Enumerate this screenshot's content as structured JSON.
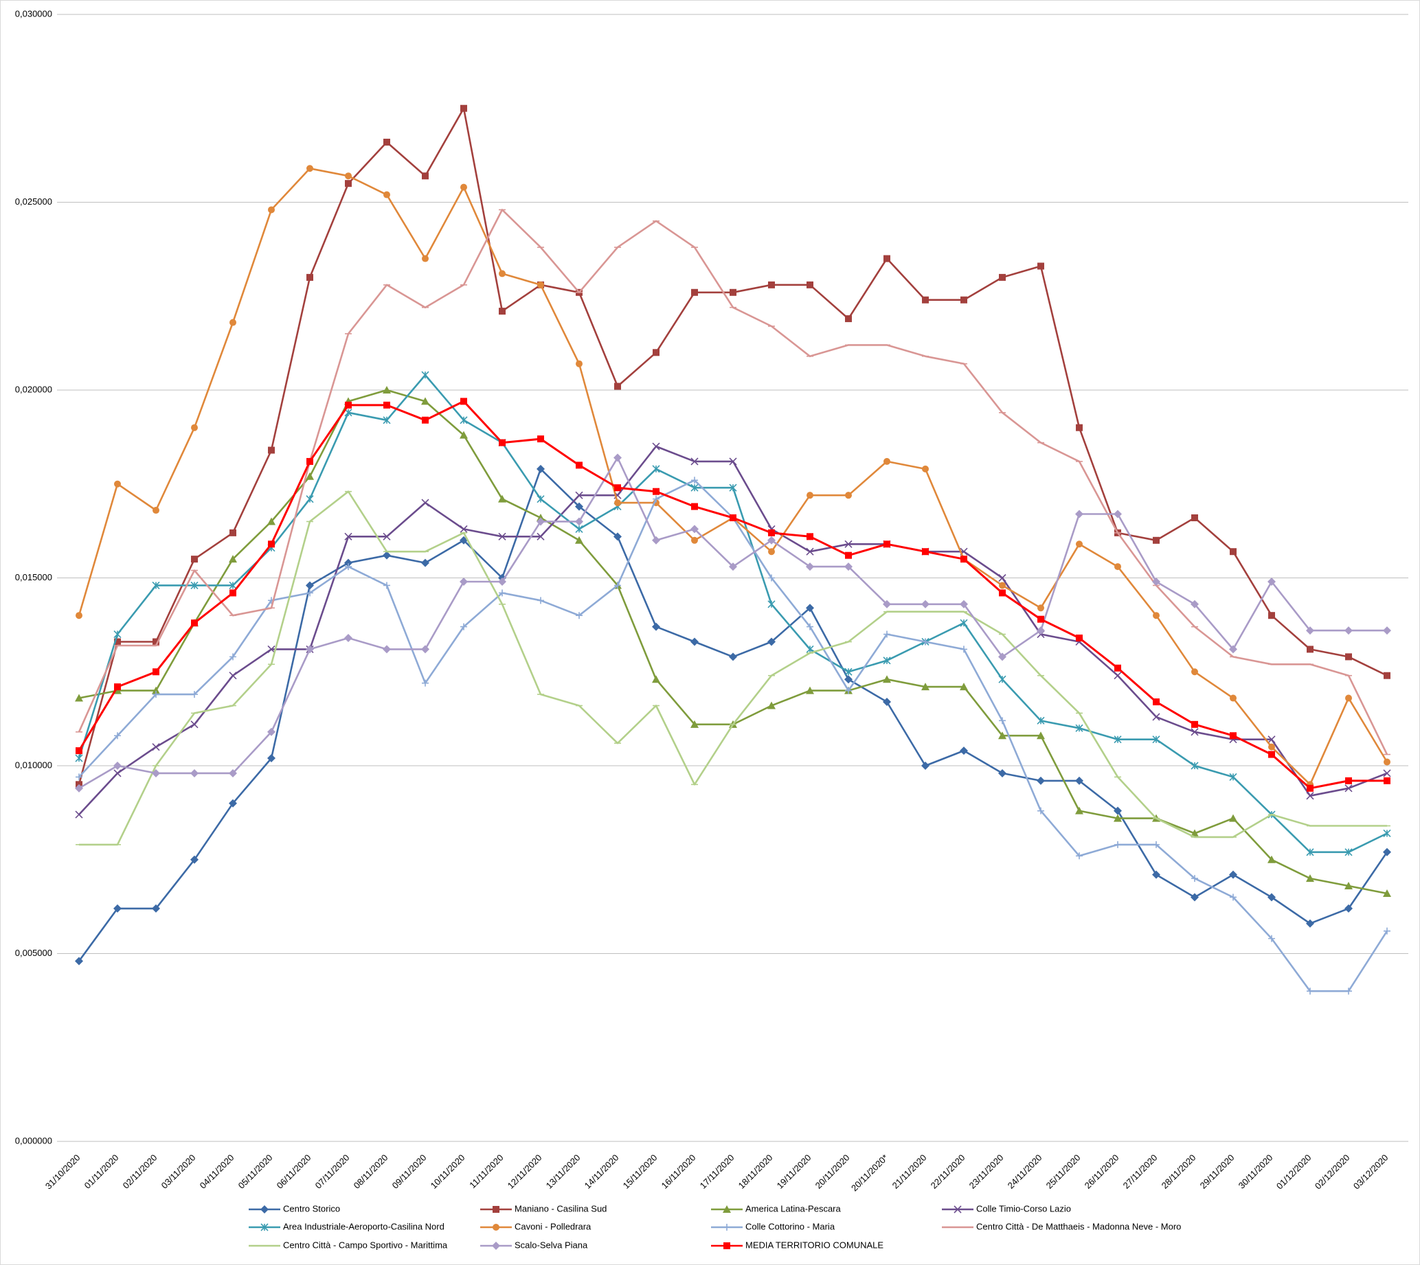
{
  "chart_data": {
    "type": "line",
    "categories": [
      "31/10/2020",
      "01/11/2020",
      "02/11/2020",
      "03/11/2020",
      "04/11/2020",
      "05/11/2020",
      "06/11/2020",
      "07/11/2020",
      "08/11/2020",
      "09/11/2020",
      "10/11/2020",
      "11/11/2020",
      "12/11/2020",
      "13/11/2020",
      "14/11/2020",
      "15/11/2020",
      "16/11/2020",
      "17/11/2020",
      "18/11/2020",
      "19/11/2020",
      "20/11/2020",
      "20/11/2020*",
      "21/11/2020",
      "22/11/2020",
      "23/11/2020",
      "24/11/2020",
      "25/11/2020",
      "26/11/2020",
      "27/11/2020",
      "28/11/2020",
      "29/11/2020",
      "30/11/2020",
      "01/12/2020",
      "02/12/2020",
      "03/12/2020"
    ],
    "ylim": [
      0,
      0.03
    ],
    "yticks": [
      {
        "value": 0,
        "label": "0,000000"
      },
      {
        "value": 0.005,
        "label": "0,005000"
      },
      {
        "value": 0.01,
        "label": "0,010000"
      },
      {
        "value": 0.015,
        "label": "0,015000"
      },
      {
        "value": 0.02,
        "label": "0,020000"
      },
      {
        "value": 0.025,
        "label": "0,025000"
      },
      {
        "value": 0.03,
        "label": "0,030000"
      }
    ],
    "grid": true,
    "legend": "bottom",
    "series": [
      {
        "name": "Centro Storico",
        "color": "#3c6aa6",
        "marker": "diamond",
        "values": [
          0.0048,
          0.0062,
          0.0062,
          0.0075,
          0.009,
          0.0102,
          0.0148,
          0.0154,
          0.0156,
          0.0154,
          0.016,
          0.015,
          0.0179,
          0.0169,
          0.0161,
          0.0137,
          0.0133,
          0.0129,
          0.0133,
          0.0142,
          0.0123,
          0.0117,
          0.01,
          0.0104,
          0.0098,
          0.0096,
          0.0096,
          0.0088,
          0.0071,
          0.0065,
          0.0071,
          0.0065,
          0.0058,
          0.0062,
          0.0077
        ]
      },
      {
        "name": "Maniano - Casilina Sud",
        "color": "#a3403d",
        "marker": "square",
        "values": [
          0.0095,
          0.0133,
          0.0133,
          0.0155,
          0.0162,
          0.0184,
          0.023,
          0.0255,
          0.0266,
          0.0257,
          0.0275,
          0.0221,
          0.0228,
          0.0226,
          0.0201,
          0.021,
          0.0226,
          0.0226,
          0.0228,
          0.0228,
          0.0219,
          0.0235,
          0.0224,
          0.0224,
          0.023,
          0.0233,
          0.019,
          0.0162,
          0.016,
          0.0166,
          0.0157,
          0.014,
          0.0131,
          0.0129,
          0.0124
        ]
      },
      {
        "name": "America Latina-Pescara",
        "color": "#7f9c3c",
        "marker": "triangle",
        "values": [
          0.0118,
          0.012,
          0.012,
          0.0138,
          0.0155,
          0.0165,
          0.0177,
          0.0197,
          0.02,
          0.0197,
          0.0188,
          0.0171,
          0.0166,
          0.016,
          0.0148,
          0.0123,
          0.0111,
          0.0111,
          0.0116,
          0.012,
          0.012,
          0.0123,
          0.0121,
          0.0121,
          0.0108,
          0.0108,
          0.0088,
          0.0086,
          0.0086,
          0.0082,
          0.0086,
          0.0075,
          0.007,
          0.0068,
          0.0066
        ]
      },
      {
        "name": "Colle Timio-Corso Lazio",
        "color": "#6b4c8d",
        "marker": "x",
        "values": [
          0.0087,
          0.0098,
          0.0105,
          0.0111,
          0.0124,
          0.0131,
          0.0131,
          0.0161,
          0.0161,
          0.017,
          0.0163,
          0.0161,
          0.0161,
          0.0172,
          0.0172,
          0.0185,
          0.0181,
          0.0181,
          0.0163,
          0.0157,
          0.0159,
          0.0159,
          0.0157,
          0.0157,
          0.015,
          0.0135,
          0.0133,
          0.0124,
          0.0113,
          0.0109,
          0.0107,
          0.0107,
          0.0092,
          0.0094,
          0.0098
        ]
      },
      {
        "name": "Area Industriale-Aeroporto-Casilina Nord",
        "color": "#3a9bb0",
        "marker": "star",
        "values": [
          0.0102,
          0.0135,
          0.0148,
          0.0148,
          0.0148,
          0.0158,
          0.0171,
          0.0194,
          0.0192,
          0.0204,
          0.0192,
          0.0186,
          0.0171,
          0.0163,
          0.0169,
          0.0179,
          0.0174,
          0.0174,
          0.0143,
          0.0131,
          0.0125,
          0.0128,
          0.0133,
          0.0138,
          0.0123,
          0.0112,
          0.011,
          0.0107,
          0.0107,
          0.01,
          0.0097,
          0.0087,
          0.0077,
          0.0077,
          0.0082
        ]
      },
      {
        "name": "Cavoni - Polledrara",
        "color": "#e0883a",
        "marker": "circle",
        "values": [
          0.014,
          0.0175,
          0.0168,
          0.019,
          0.0218,
          0.0248,
          0.0259,
          0.0257,
          0.0252,
          0.0235,
          0.0254,
          0.0231,
          0.0228,
          0.0207,
          0.017,
          0.017,
          0.016,
          0.0166,
          0.0157,
          0.0172,
          0.0172,
          0.0181,
          0.0179,
          0.0155,
          0.0148,
          0.0142,
          0.0159,
          0.0153,
          0.014,
          0.0125,
          0.0118,
          0.0105,
          0.0095,
          0.0118,
          0.0101
        ]
      },
      {
        "name": "Colle Cottorino - Maria",
        "color": "#8eaad6",
        "marker": "plus",
        "values": [
          0.0097,
          0.0108,
          0.0119,
          0.0119,
          0.0129,
          0.0144,
          0.0146,
          0.0153,
          0.0148,
          0.0122,
          0.0137,
          0.0146,
          0.0144,
          0.014,
          0.0148,
          0.0171,
          0.0176,
          0.0166,
          0.015,
          0.0137,
          0.012,
          0.0135,
          0.0133,
          0.0131,
          0.0112,
          0.0088,
          0.0076,
          0.0079,
          0.0079,
          0.007,
          0.0065,
          0.0054,
          0.004,
          0.004,
          0.0056
        ]
      },
      {
        "name": "Centro Città - De Matthaeis - Madonna Neve - Moro",
        "color": "#d99694",
        "marker": "dash",
        "values": [
          0.0109,
          0.0132,
          0.0132,
          0.0152,
          0.014,
          0.0142,
          0.0181,
          0.0215,
          0.0228,
          0.0222,
          0.0228,
          0.0248,
          0.0238,
          0.0226,
          0.0238,
          0.0245,
          0.0238,
          0.0222,
          0.0217,
          0.0209,
          0.0212,
          0.0212,
          0.0209,
          0.0207,
          0.0194,
          0.0186,
          0.0181,
          0.0162,
          0.0148,
          0.0137,
          0.0129,
          0.0127,
          0.0127,
          0.0124,
          0.0103
        ]
      },
      {
        "name": "Centro Città - Campo Sportivo - Marittima",
        "color": "#b3d08a",
        "marker": "dash",
        "values": [
          0.0079,
          0.0079,
          0.01,
          0.0114,
          0.0116,
          0.0127,
          0.0165,
          0.0173,
          0.0157,
          0.0157,
          0.0162,
          0.0143,
          0.0119,
          0.0116,
          0.0106,
          0.0116,
          0.0095,
          0.0111,
          0.0124,
          0.013,
          0.0133,
          0.0141,
          0.0141,
          0.0141,
          0.0135,
          0.0124,
          0.0114,
          0.0097,
          0.0086,
          0.0081,
          0.0081,
          0.0087,
          0.0084,
          0.0084,
          0.0084
        ]
      },
      {
        "name": "Scalo-Selva Piana",
        "color": "#a99bc7",
        "marker": "diamond",
        "values": [
          0.0094,
          0.01,
          0.0098,
          0.0098,
          0.0098,
          0.0109,
          0.0131,
          0.0134,
          0.0131,
          0.0131,
          0.0149,
          0.0149,
          0.0165,
          0.0165,
          0.0182,
          0.016,
          0.0163,
          0.0153,
          0.016,
          0.0153,
          0.0153,
          0.0143,
          0.0143,
          0.0143,
          0.0129,
          0.0136,
          0.0167,
          0.0167,
          0.0149,
          0.0143,
          0.0131,
          0.0149,
          0.0136,
          0.0136,
          0.0136
        ]
      },
      {
        "name": "MEDIA TERRITORIO COMUNALE",
        "color": "#ff0000",
        "marker": "square",
        "values": [
          0.0104,
          0.0121,
          0.0125,
          0.0138,
          0.0146,
          0.0159,
          0.0181,
          0.0196,
          0.0196,
          0.0192,
          0.0197,
          0.0186,
          0.0187,
          0.018,
          0.0174,
          0.0173,
          0.0169,
          0.0166,
          0.0162,
          0.0161,
          0.0156,
          0.0159,
          0.0157,
          0.0155,
          0.0146,
          0.0139,
          0.0134,
          0.0126,
          0.0117,
          0.0111,
          0.0108,
          0.0103,
          0.0094,
          0.0096,
          0.0096
        ]
      }
    ]
  }
}
